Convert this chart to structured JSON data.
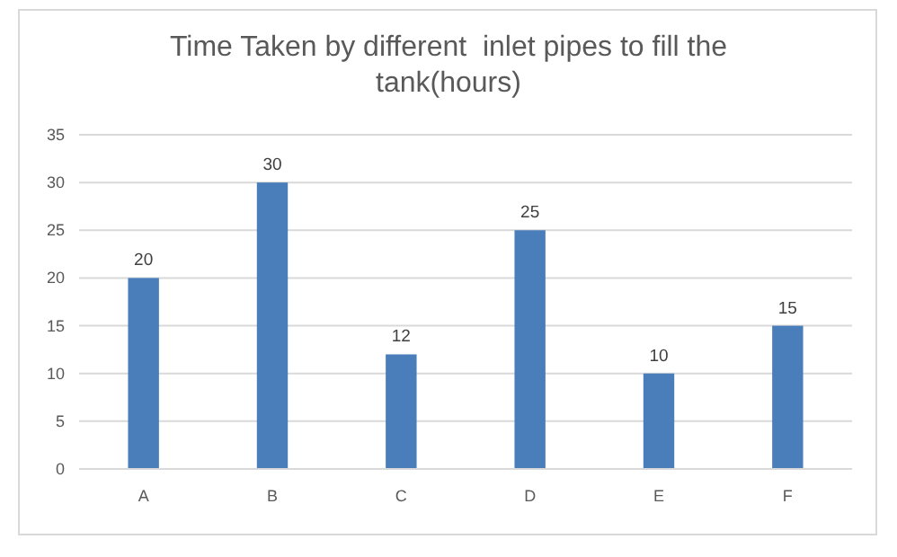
{
  "chart_data": {
    "type": "bar",
    "title": "Time Taken by different  inlet pipes to fill the tank(hours)",
    "categories": [
      "A",
      "B",
      "C",
      "D",
      "E",
      "F"
    ],
    "values": [
      20,
      30,
      12,
      25,
      10,
      15
    ],
    "color": "#4a7ebb",
    "ylim": [
      0,
      35
    ],
    "yticks": [
      0,
      5,
      10,
      15,
      20,
      25,
      30,
      35
    ],
    "grid": "y",
    "data_labels": true
  }
}
